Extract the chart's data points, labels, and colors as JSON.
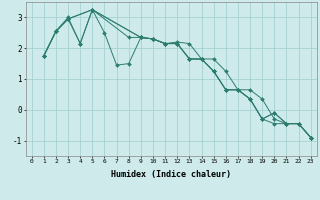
{
  "xlabel": "Humidex (Indice chaleur)",
  "bg_color": "#ceeaea",
  "line_color": "#2d7d6f",
  "grid_color": "#9ecece",
  "xlim": [
    -0.5,
    23.5
  ],
  "ylim": [
    -1.5,
    3.5
  ],
  "yticks": [
    -1,
    0,
    1,
    2,
    3
  ],
  "xticks": [
    0,
    1,
    2,
    3,
    4,
    5,
    6,
    7,
    8,
    9,
    10,
    11,
    12,
    13,
    14,
    15,
    16,
    17,
    18,
    19,
    20,
    21,
    22,
    23
  ],
  "series": [
    {
      "x": [
        1,
        2,
        3,
        4,
        5,
        6,
        7,
        8,
        9,
        10,
        11,
        12,
        13,
        14,
        15,
        16,
        17,
        18,
        19,
        20,
        21,
        22,
        23
      ],
      "y": [
        1.75,
        2.55,
        3.0,
        2.15,
        3.25,
        2.5,
        1.45,
        1.5,
        2.35,
        2.3,
        2.15,
        2.2,
        2.15,
        1.65,
        1.65,
        1.25,
        0.65,
        0.65,
        0.35,
        -0.3,
        -0.45,
        -0.45,
        -0.9
      ]
    },
    {
      "x": [
        1,
        2,
        3,
        4,
        5,
        9,
        10,
        11,
        12,
        13,
        14,
        15,
        16,
        17,
        18,
        19,
        20,
        21,
        22,
        23
      ],
      "y": [
        1.75,
        2.55,
        2.95,
        2.15,
        3.25,
        2.35,
        2.3,
        2.15,
        2.15,
        1.65,
        1.65,
        1.25,
        0.65,
        0.65,
        0.35,
        -0.3,
        -0.45,
        -0.45,
        -0.45,
        -0.9
      ]
    },
    {
      "x": [
        1,
        2,
        3,
        5,
        8,
        9,
        10,
        11,
        12,
        13,
        14,
        15,
        16,
        17,
        18,
        19,
        20,
        21,
        22,
        23
      ],
      "y": [
        1.75,
        2.55,
        2.95,
        3.25,
        2.35,
        2.35,
        2.3,
        2.15,
        2.15,
        1.65,
        1.65,
        1.25,
        0.65,
        0.65,
        0.35,
        -0.3,
        -0.1,
        -0.45,
        -0.45,
        -0.9
      ]
    },
    {
      "x": [
        1,
        2,
        3,
        5,
        9,
        10,
        11,
        12,
        13,
        14,
        15,
        16,
        17,
        18,
        19,
        20,
        21,
        22,
        23
      ],
      "y": [
        1.75,
        2.55,
        2.95,
        3.25,
        2.35,
        2.3,
        2.15,
        2.15,
        1.65,
        1.65,
        1.25,
        0.65,
        0.65,
        0.35,
        -0.3,
        -0.1,
        -0.45,
        -0.45,
        -0.9
      ]
    }
  ]
}
